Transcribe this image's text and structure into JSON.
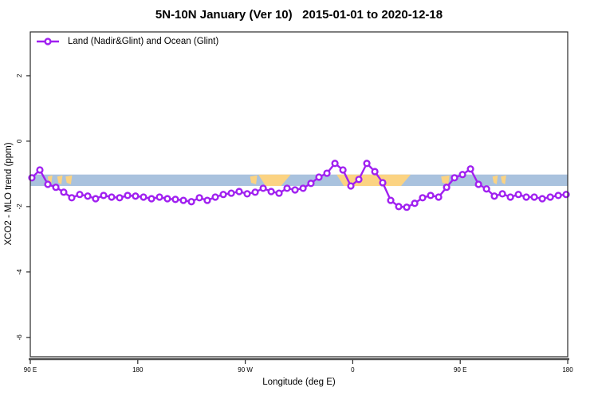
{
  "title": "5N-10N January (Ver 10)   2015-01-01 to 2020-12-18",
  "legend": {
    "label": "Land (Nadir&Glint) and Ocean (Glint)",
    "series_color": "#A020F0"
  },
  "axes": {
    "x": {
      "title": "Longitude (deg E)",
      "ticks": [
        {
          "value": 90,
          "label": "90 E"
        },
        {
          "value": 180,
          "label": "180"
        },
        {
          "value": 270,
          "label": "90 W"
        },
        {
          "value": 360,
          "label": "0"
        },
        {
          "value": 450,
          "label": "90 E"
        },
        {
          "value": 540,
          "label": "180"
        }
      ]
    },
    "y": {
      "title": "XCO2 - MLO trend (ppm)",
      "ticks": [
        {
          "value": 2,
          "label": "2"
        },
        {
          "value": 0,
          "label": "0"
        },
        {
          "value": -2,
          "label": "-2"
        },
        {
          "value": -4,
          "label": "-4"
        },
        {
          "value": -6,
          "label": "-6"
        }
      ]
    }
  },
  "chart_data": {
    "type": "line",
    "title": "5N-10N January (Ver 10)   2015-01-01 to 2020-12-18",
    "xlabel": "Longitude (deg E)",
    "ylabel": "XCO2 - MLO trend (ppm)",
    "xlim": [
      90,
      540
    ],
    "ylim": [
      -6.59,
      3.34
    ],
    "x_axis_note": "longitude unwrapped eastward from 90E: 180=180, 270=90W, 360=0(Greenwich), 450=90E, 540=180",
    "grid": false,
    "legend_position": "top-left",
    "series": [
      {
        "name": "Land (Nadir&Glint) and Ocean (Glint)",
        "color": "#A020F0",
        "marker": "open-circle",
        "x": [
          91.3,
          98.0,
          104.7,
          111.4,
          118.0,
          124.7,
          131.4,
          138.1,
          144.7,
          151.4,
          158.1,
          164.8,
          171.5,
          178.1,
          184.8,
          191.5,
          198.2,
          204.8,
          211.5,
          218.2,
          224.9,
          231.6,
          238.2,
          244.9,
          251.6,
          258.3,
          264.9,
          271.6,
          278.3,
          285.0,
          291.7,
          298.3,
          305.0,
          311.7,
          318.4,
          325.0,
          331.7,
          338.4,
          345.1,
          351.8,
          358.4,
          365.1,
          371.8,
          378.5,
          385.1,
          391.8,
          398.5,
          405.2,
          411.9,
          418.5,
          425.2,
          431.9,
          438.6,
          445.2,
          451.9,
          458.6,
          465.3,
          472.0,
          478.6,
          485.3,
          492.0,
          498.7,
          505.3,
          512.0,
          518.7,
          525.4,
          532.1,
          538.7
        ],
        "y": [
          -1.12,
          -0.88,
          -1.32,
          -1.41,
          -1.56,
          -1.73,
          -1.63,
          -1.68,
          -1.76,
          -1.66,
          -1.71,
          -1.73,
          -1.66,
          -1.68,
          -1.71,
          -1.76,
          -1.71,
          -1.76,
          -1.78,
          -1.81,
          -1.85,
          -1.73,
          -1.81,
          -1.71,
          -1.63,
          -1.59,
          -1.54,
          -1.61,
          -1.56,
          -1.44,
          -1.54,
          -1.59,
          -1.44,
          -1.49,
          -1.44,
          -1.29,
          -1.1,
          -0.98,
          -0.68,
          -0.88,
          -1.37,
          -1.17,
          -0.68,
          -0.93,
          -1.27,
          -1.81,
          -2.0,
          -2.02,
          -1.9,
          -1.73,
          -1.66,
          -1.71,
          -1.41,
          -1.12,
          -1.02,
          -0.85,
          -1.32,
          -1.46,
          -1.68,
          -1.61,
          -1.71,
          -1.63,
          -1.71,
          -1.71,
          -1.76,
          -1.71,
          -1.66,
          -1.63
        ]
      }
    ],
    "band": {
      "description": "horizontal reference band across full x range",
      "x_from": 90,
      "x_to": 540,
      "y_from": -1.02,
      "y_to": -1.37,
      "color": "#A9C2DE"
    },
    "highlights": {
      "description": "gold patches drawn inside the reference band",
      "color": "#FBD382",
      "segments": [
        {
          "x_from": 104.5,
          "x_to": 108.5,
          "shape": "speck"
        },
        {
          "x_from": 112.5,
          "x_to": 117.0,
          "shape": "speck"
        },
        {
          "x_from": 119.5,
          "x_to": 125.0,
          "shape": "speck"
        },
        {
          "x_from": 274.0,
          "x_to": 280.0,
          "shape": "speck"
        },
        {
          "x_from": 281.0,
          "x_to": 308.0,
          "shape": "trapezoid"
        },
        {
          "x_from": 346.5,
          "x_to": 408.5,
          "shape": "trapezoid"
        },
        {
          "x_from": 434.0,
          "x_to": 441.0,
          "shape": "speck"
        },
        {
          "x_from": 477.0,
          "x_to": 481.5,
          "shape": "speck"
        },
        {
          "x_from": 484.0,
          "x_to": 488.5,
          "shape": "speck"
        }
      ]
    }
  },
  "colors": {
    "series": "#A020F0",
    "band": "#A9C2DE",
    "highlight": "#FBD382",
    "axis_box": "#2a2a2a",
    "axis_baseline": "#4d4d4d",
    "background": "#ffffff",
    "text": "#000000"
  }
}
